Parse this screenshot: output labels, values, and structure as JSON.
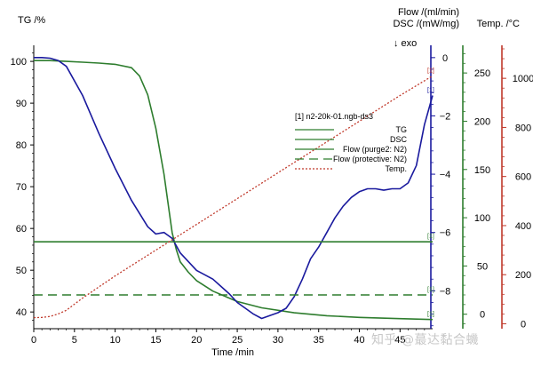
{
  "chart_data": {
    "type": "line",
    "title": "",
    "xlabel": "Time /min",
    "xlim": [
      0,
      49
    ],
    "x_ticks": [
      "0",
      "5",
      "10",
      "15",
      "20",
      "25",
      "30",
      "35",
      "40",
      "45"
    ],
    "axes": {
      "tg": {
        "label": "TG /%",
        "range": [
          36,
          103
        ],
        "ticks": [
          "40",
          "50",
          "60",
          "70",
          "80",
          "90",
          "100"
        ],
        "color": "#000000"
      },
      "dsc": {
        "label": "DSC /(mW/mg)",
        "range": [
          -9.3,
          0.3
        ],
        "ticks": [
          "0",
          "-2",
          "-4",
          "-6",
          "-8"
        ],
        "color": "#1a1a9e"
      },
      "flow": {
        "label": "Flow /(ml/min)",
        "range": [
          -15,
          275
        ],
        "ticks": [
          "0",
          "50",
          "100",
          "150",
          "200",
          "250"
        ],
        "color": "#2e7d2e"
      },
      "temp": {
        "label": "Temp. /°C",
        "range": [
          -20,
          1120
        ],
        "ticks": [
          "0",
          "200",
          "400",
          "600",
          "800",
          "1000"
        ],
        "color": "#c0392b"
      }
    },
    "exo_label": "↓ exo",
    "legend": {
      "title": "[1] n2-20k-01.ngb-ds3",
      "entries": [
        {
          "name": "TG",
          "style": "solid",
          "color": "#2e7d2e"
        },
        {
          "name": "DSC",
          "style": "solid",
          "color": "#2e7d2e"
        },
        {
          "name": "Flow (purge2: N2)",
          "style": "solid",
          "color": "#2e7d2e"
        },
        {
          "name": "Flow (protective: N2)",
          "style": "dashed",
          "color": "#2e7d2e"
        },
        {
          "name": "Temp.",
          "style": "dotted",
          "color": "#c0392b"
        }
      ]
    },
    "series": [
      {
        "name": "TG",
        "axis": "tg",
        "color": "#2e7d2e",
        "style": "solid",
        "x": [
          0,
          2,
          4,
          6,
          8,
          10,
          12,
          13,
          14,
          15,
          16,
          16.5,
          17,
          17.5,
          18,
          19,
          20,
          22,
          25,
          28,
          32,
          36,
          40,
          45,
          49
        ],
        "y": [
          100.2,
          100.2,
          100.0,
          99.8,
          99.6,
          99.3,
          98.5,
          96.5,
          92,
          84,
          73,
          66,
          59,
          55,
          52,
          49.5,
          47.5,
          45,
          42.5,
          41,
          39.8,
          39.1,
          38.7,
          38.4,
          38.2
        ]
      },
      {
        "name": "DSC",
        "axis": "dsc",
        "color": "#1a1a9e",
        "style": "solid",
        "x": [
          0,
          1,
          2,
          3,
          4,
          6,
          8,
          10,
          12,
          14,
          15,
          16,
          16.5,
          17,
          18,
          20,
          22,
          24,
          25,
          26,
          27,
          28,
          29,
          30,
          31,
          32,
          33,
          34,
          35,
          36,
          37,
          38,
          39,
          40,
          41,
          42,
          43,
          44,
          45,
          46,
          47,
          48,
          49
        ],
        "y": [
          0,
          0,
          -0.02,
          -0.1,
          -0.3,
          -1.3,
          -2.6,
          -3.8,
          -4.9,
          -5.8,
          -6.05,
          -6.0,
          -6.1,
          -6.2,
          -6.7,
          -7.3,
          -7.6,
          -8.1,
          -8.4,
          -8.6,
          -8.8,
          -8.95,
          -8.85,
          -8.75,
          -8.6,
          -8.2,
          -7.6,
          -6.9,
          -6.5,
          -6.0,
          -5.5,
          -5.1,
          -4.8,
          -4.6,
          -4.5,
          -4.5,
          -4.55,
          -4.5,
          -4.5,
          -4.3,
          -3.7,
          -2.3,
          -1.3
        ]
      },
      {
        "name": "Flow (purge2: N2)",
        "axis": "flow",
        "color": "#2e7d2e",
        "style": "solid",
        "x": [
          0,
          49
        ],
        "y": [
          75,
          75
        ]
      },
      {
        "name": "Flow (protective: N2)",
        "axis": "flow",
        "color": "#2e7d2e",
        "style": "dashed",
        "x": [
          0,
          49
        ],
        "y": [
          20,
          20
        ]
      },
      {
        "name": "Temp.",
        "axis": "temp",
        "color": "#c0392b",
        "style": "dotted",
        "x": [
          0,
          1,
          2,
          3,
          4,
          5,
          6,
          8,
          10,
          15,
          20,
          25,
          30,
          35,
          40,
          45,
          49
        ],
        "y": [
          25,
          26,
          30,
          40,
          55,
          80,
          105,
          150,
          195,
          300,
          405,
          510,
          615,
          720,
          825,
          930,
          1010
        ]
      }
    ],
    "end_markers": [
      {
        "series": "TG",
        "text": "[1]"
      },
      {
        "series": "DSC",
        "text": "[1]"
      },
      {
        "series": "Flow (purge2: N2)",
        "text": "[1]"
      },
      {
        "series": "Flow (protective: N2)",
        "text": "[1]"
      },
      {
        "series": "Temp.",
        "text": "[1]"
      }
    ],
    "grid": false
  },
  "watermark": "知乎 @蕞达黏合蟣"
}
